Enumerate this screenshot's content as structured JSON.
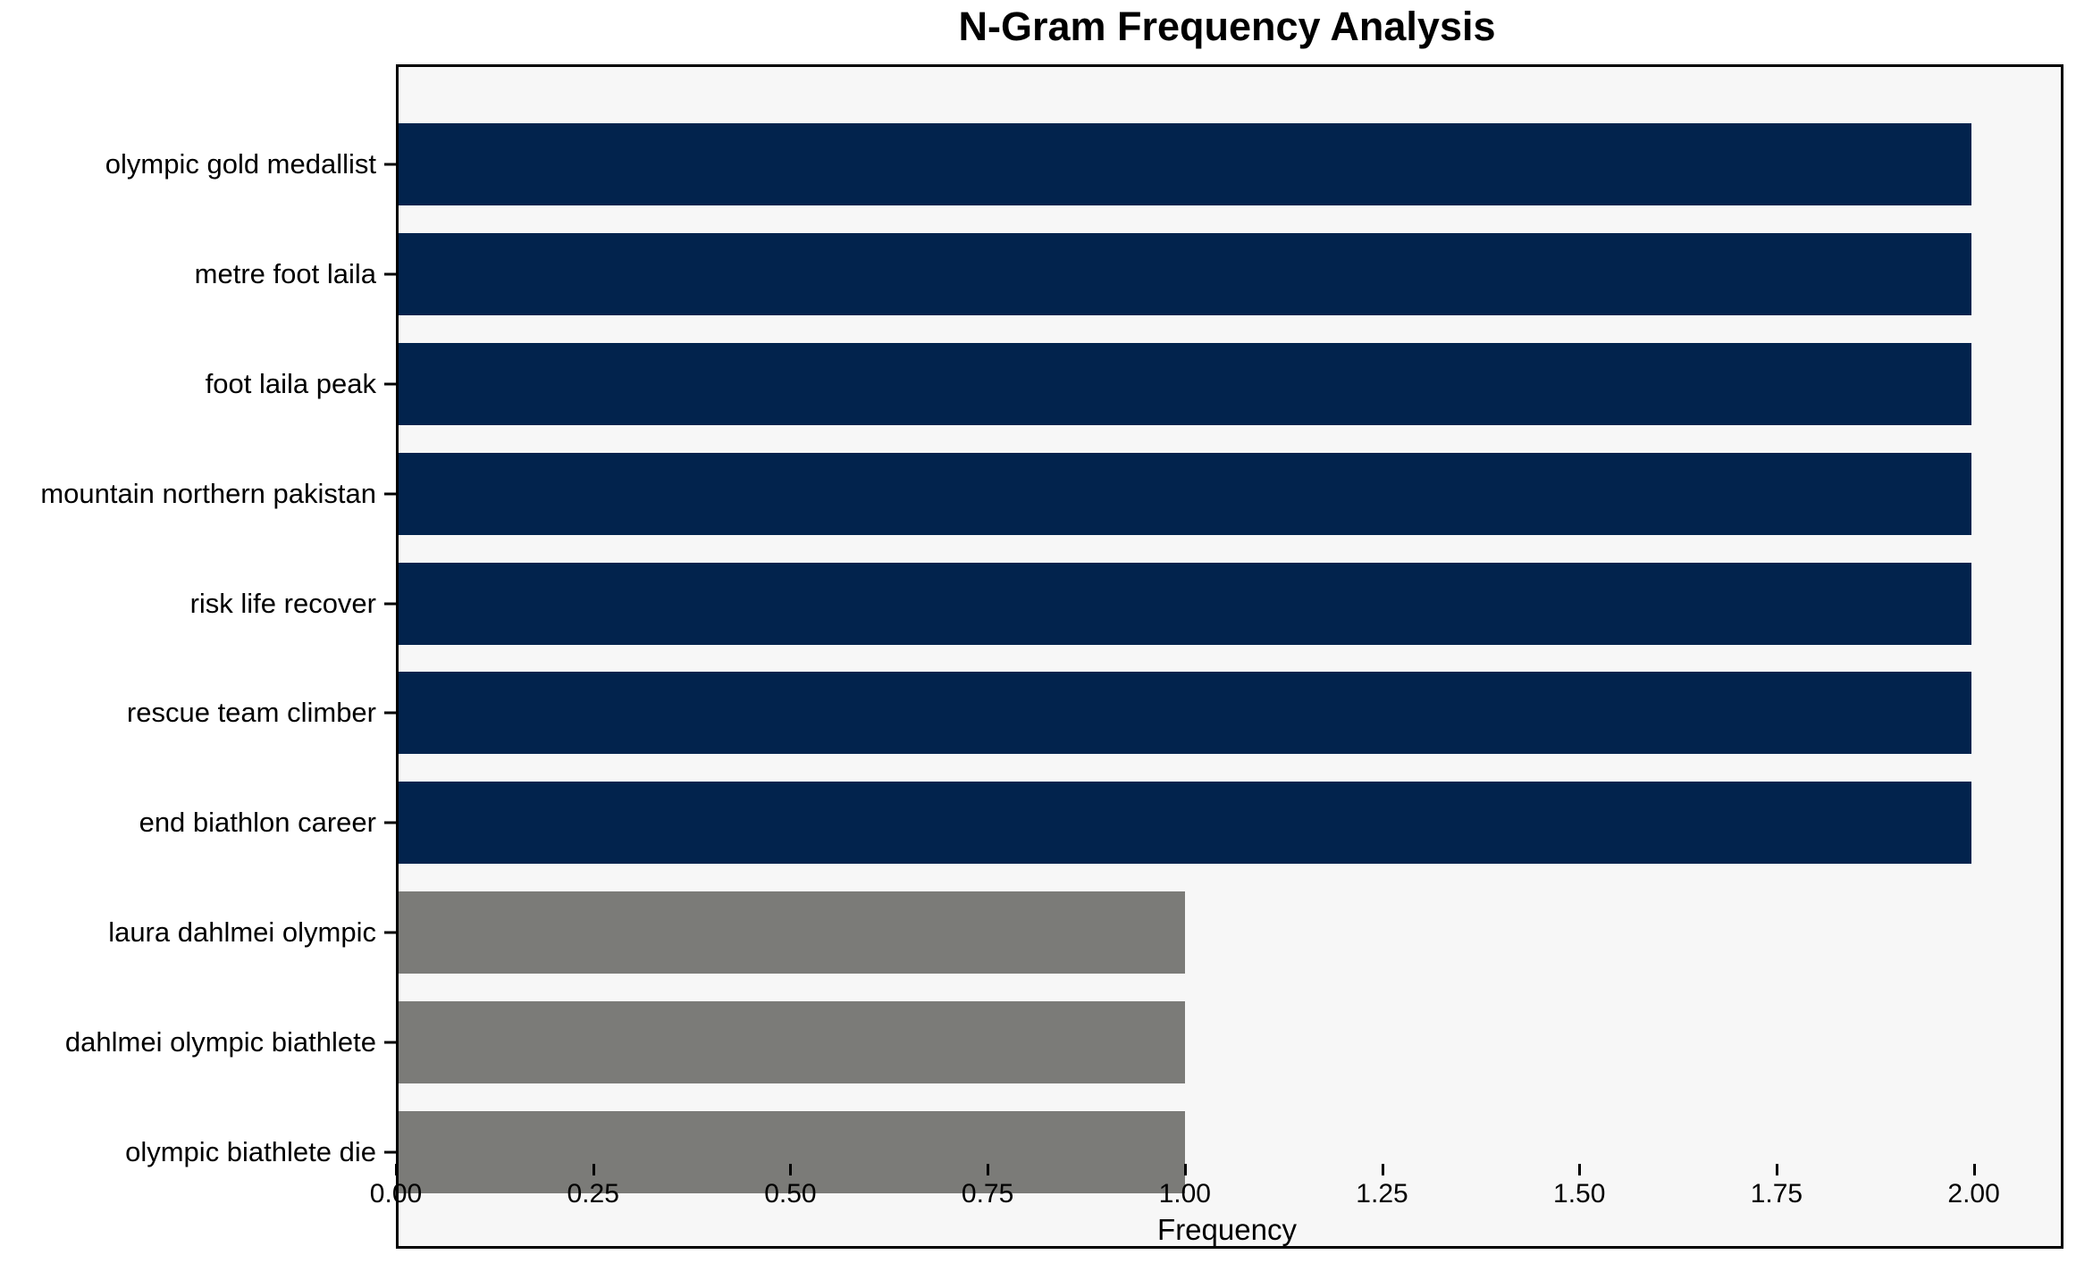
{
  "chart_data": {
    "type": "bar",
    "orientation": "horizontal",
    "title": "N-Gram Frequency Analysis",
    "xlabel": "Frequency",
    "ylabel": "",
    "categories": [
      "olympic gold medallist",
      "metre foot laila",
      "foot laila peak",
      "mountain northern pakistan",
      "risk life recover",
      "rescue team climber",
      "end biathlon career",
      "laura dahlmei olympic",
      "dahlmei olympic biathlete",
      "olympic biathlete die"
    ],
    "values": [
      2,
      2,
      2,
      2,
      2,
      2,
      2,
      1,
      1,
      1
    ],
    "bar_colors": [
      "#02234d",
      "#02234d",
      "#02234d",
      "#02234d",
      "#02234d",
      "#02234d",
      "#02234d",
      "#7b7b78",
      "#7b7b78",
      "#7b7b78"
    ],
    "xlim": [
      0,
      2.1137
    ],
    "xtick_values": [
      0,
      0.25,
      0.5,
      0.75,
      1.0,
      1.25,
      1.5,
      1.75,
      2.0
    ],
    "xtick_labels": [
      "0.00",
      "0.25",
      "0.50",
      "0.75",
      "1.00",
      "1.25",
      "1.50",
      "1.75",
      "2.00"
    ],
    "grid": false,
    "legend": null,
    "colors": {
      "bar_high": "#02234d",
      "bar_low": "#7b7b78",
      "plot_background": "#f7f7f7",
      "figure_background": "#ffffff",
      "axis": "#000000"
    }
  }
}
